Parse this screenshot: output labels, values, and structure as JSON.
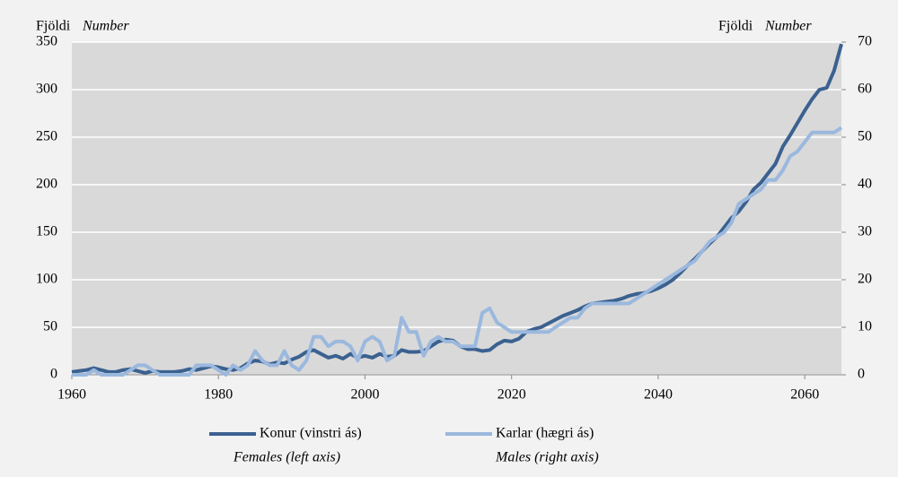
{
  "chart_data": {
    "type": "line",
    "ylabel": [
      "Fjöldi",
      "Number"
    ],
    "y2label": [
      "Fjöldi",
      "Number"
    ],
    "x": [
      1960,
      1961,
      1962,
      1963,
      1964,
      1965,
      1966,
      1967,
      1968,
      1969,
      1970,
      1971,
      1972,
      1973,
      1974,
      1975,
      1976,
      1977,
      1978,
      1979,
      1980,
      1981,
      1982,
      1983,
      1984,
      1985,
      1986,
      1987,
      1988,
      1989,
      1990,
      1991,
      1992,
      1993,
      1994,
      1995,
      1996,
      1997,
      1998,
      1999,
      2000,
      2001,
      2002,
      2003,
      2004,
      2005,
      2006,
      2007,
      2008,
      2009,
      2010,
      2011,
      2012,
      2013,
      2014,
      2015,
      2016,
      2017,
      2018,
      2019,
      2020,
      2021,
      2022,
      2023,
      2024,
      2025,
      2026,
      2027,
      2028,
      2029,
      2030,
      2031,
      2032,
      2033,
      2034,
      2035,
      2036,
      2037,
      2038,
      2039,
      2040,
      2041,
      2042,
      2043,
      2044,
      2045,
      2046,
      2047,
      2048,
      2049,
      2050,
      2051,
      2052,
      2053,
      2054,
      2055,
      2056,
      2057,
      2058,
      2059,
      2060,
      2061,
      2062,
      2063,
      2064,
      2065
    ],
    "series": [
      {
        "name": "Konur (vinstri ás)",
        "name_en": "Females (left axis)",
        "color": "#3b6190",
        "axis": "y",
        "values": [
          3,
          4,
          5,
          7,
          5,
          3,
          3,
          5,
          6,
          4,
          2,
          4,
          3,
          3,
          3,
          4,
          6,
          5,
          7,
          9,
          8,
          6,
          5,
          7,
          12,
          15,
          14,
          11,
          13,
          12,
          16,
          19,
          24,
          26,
          22,
          18,
          20,
          17,
          22,
          18,
          20,
          18,
          22,
          19,
          20,
          26,
          24,
          24,
          25,
          30,
          35,
          37,
          36,
          30,
          27,
          27,
          25,
          26,
          32,
          36,
          35,
          38,
          45,
          48,
          50,
          54,
          58,
          62,
          65,
          68,
          72,
          75,
          76,
          77,
          78,
          80,
          83,
          85,
          86,
          88,
          91,
          95,
          100,
          107,
          115,
          122,
          130,
          138,
          145,
          155,
          165,
          172,
          182,
          195,
          202,
          212,
          222,
          240,
          252,
          265,
          278,
          290,
          300,
          302,
          320,
          348
        ]
      },
      {
        "name": "Karlar (hægri ás)",
        "name_en": "Males (right axis)",
        "color": "#9bb8de",
        "axis": "y2",
        "values": [
          0,
          0,
          0,
          1,
          0,
          0,
          0,
          0,
          1,
          2,
          2,
          1,
          0,
          0,
          0,
          0,
          0,
          2,
          2,
          2,
          1,
          0,
          2,
          1,
          2,
          5,
          3,
          2,
          2,
          5,
          2,
          1,
          3,
          8,
          8,
          6,
          7,
          7,
          6,
          3,
          7,
          8,
          7,
          3,
          4,
          12,
          9,
          9,
          4,
          7,
          8,
          7,
          7,
          6,
          6,
          6,
          13,
          14,
          11,
          10,
          9,
          9,
          9,
          9,
          9,
          9,
          10,
          11,
          12,
          12,
          14,
          15,
          15,
          15,
          15,
          15,
          15,
          16,
          17,
          18,
          19,
          20,
          21,
          22,
          23,
          24,
          26,
          28,
          29,
          30,
          32,
          36,
          37,
          38,
          39,
          41,
          41,
          43,
          46,
          47,
          49,
          51,
          51,
          51,
          51,
          52
        ]
      }
    ],
    "xlim": [
      1960,
      2065
    ],
    "xticks": [
      1960,
      1980,
      2000,
      2020,
      2040,
      2060
    ],
    "ylim": [
      0,
      350
    ],
    "yticks": [
      0,
      50,
      100,
      150,
      200,
      250,
      300,
      350
    ],
    "y2lim": [
      0,
      70
    ],
    "y2ticks": [
      0,
      10,
      20,
      30,
      40,
      50,
      60,
      70
    ],
    "grid": true,
    "legend": "bottom"
  }
}
